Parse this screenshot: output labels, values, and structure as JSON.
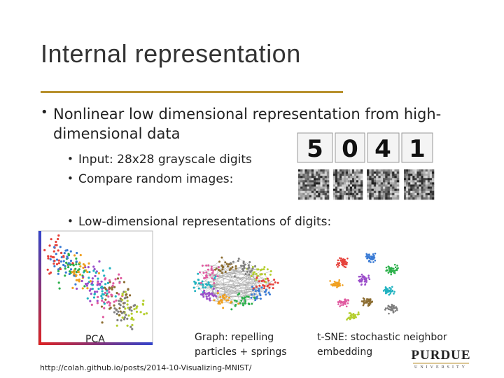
{
  "slide": {
    "title": "Internal representation",
    "bullets": [
      {
        "text": "Nonlinear low dimensional representation from high-dimensional data",
        "sub": [
          "Input: 28x28 grayscale digits",
          "Compare random images:"
        ]
      },
      {
        "text": "Low-dimensional representations of digits:"
      }
    ],
    "digits": [
      "5",
      "0",
      "4",
      "1"
    ],
    "captions": {
      "pca": "PCA",
      "graph": "Graph:  repelling particles + springs",
      "tsne": "t-SNE: stochastic neighbor embedding"
    },
    "source_url": "http://colah.github.io/posts/2014-10-Visualizing-MNIST/",
    "logo": {
      "name": "PURDUE",
      "sub": "UNIVERSITY"
    }
  }
}
